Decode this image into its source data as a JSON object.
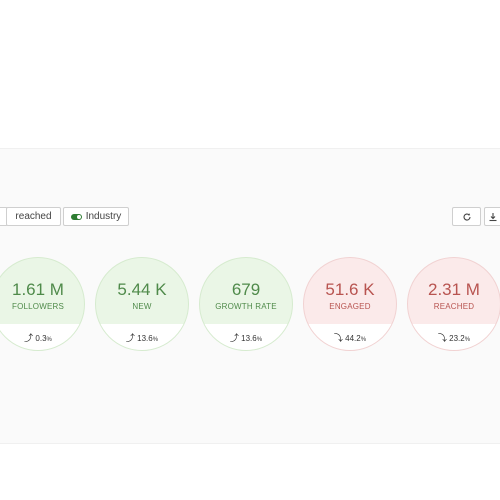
{
  "toolbar": {
    "reached_label": "reached",
    "industry_label": "Industry",
    "refresh_icon": "refresh-icon",
    "download_icon": "download-icon"
  },
  "metrics": [
    {
      "value": "1.61 M",
      "label": "FOLLOWERS",
      "change": "0.3",
      "unit": "%",
      "direction": "up"
    },
    {
      "value": "5.44 K",
      "label": "NEW",
      "change": "13.6",
      "unit": "%",
      "direction": "up"
    },
    {
      "value": "679",
      "label": "GROWTH RATE",
      "change": "13.6",
      "unit": "%",
      "direction": "up"
    },
    {
      "value": "51.6 K",
      "label": "ENGAGED",
      "change": "44.2",
      "unit": "%",
      "direction": "down"
    },
    {
      "value": "2.31 M",
      "label": "REACHED",
      "change": "23.2",
      "unit": "%",
      "direction": "down"
    }
  ],
  "colors": {
    "positive": "#4f8a4a",
    "negative": "#b85450",
    "toggle_on": "#2e7d32"
  }
}
